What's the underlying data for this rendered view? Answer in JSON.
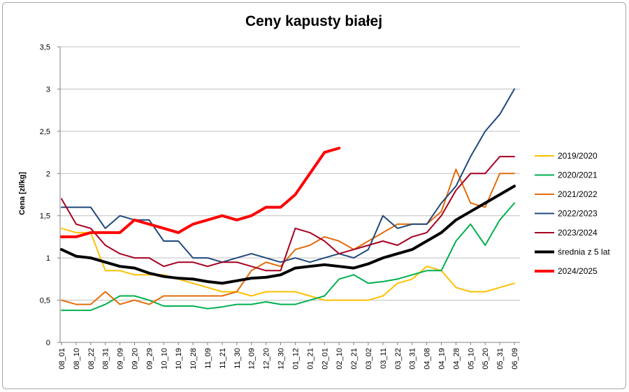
{
  "chart_data": {
    "type": "line",
    "title": "Ceny kapusty białej",
    "xlabel": "",
    "ylabel": "Cena [zł/kg]",
    "ylim": [
      0,
      3.5
    ],
    "y_ticks": [
      "0",
      "0,5",
      "1",
      "1,5",
      "2",
      "2,5",
      "3",
      "3,5"
    ],
    "grid": "horizontal",
    "legend_position": "right",
    "categories": [
      "08_01",
      "08_10",
      "08_22",
      "08_31",
      "09_09",
      "09_20",
      "09_29",
      "10_10",
      "10_19",
      "10_28",
      "11_09",
      "11_21",
      "11_30",
      "12_09",
      "12_20",
      "12_30",
      "01_12",
      "01_21",
      "02_01",
      "02_10",
      "02_21",
      "03_02",
      "03_11",
      "03_22",
      "03_31",
      "04_08",
      "04_19",
      "04_28",
      "05_10",
      "05_20",
      "05_31",
      "06_09"
    ],
    "series": [
      {
        "name": "2019/2020",
        "color": "#ffc000",
        "width": 2,
        "values": [
          1.35,
          1.3,
          1.3,
          0.85,
          0.85,
          0.8,
          0.8,
          0.8,
          0.75,
          0.7,
          0.65,
          0.6,
          0.6,
          0.55,
          0.6,
          0.6,
          0.6,
          0.55,
          0.5,
          0.5,
          0.5,
          0.5,
          0.55,
          0.7,
          0.75,
          0.9,
          0.85,
          0.65,
          0.6,
          0.6,
          0.65,
          0.7
        ]
      },
      {
        "name": "2020/2021",
        "color": "#00b050",
        "width": 2,
        "values": [
          0.38,
          0.38,
          0.38,
          0.45,
          0.55,
          0.55,
          0.5,
          0.43,
          0.43,
          0.43,
          0.4,
          0.42,
          0.45,
          0.45,
          0.48,
          0.45,
          0.45,
          0.5,
          0.55,
          0.75,
          0.8,
          0.7,
          0.72,
          0.75,
          0.8,
          0.85,
          0.85,
          1.2,
          1.4,
          1.15,
          1.45,
          1.65
        ]
      },
      {
        "name": "2021/2022",
        "color": "#e46c0a",
        "width": 2,
        "values": [
          0.5,
          0.45,
          0.45,
          0.6,
          0.45,
          0.5,
          0.45,
          0.55,
          0.55,
          0.55,
          0.55,
          0.55,
          0.6,
          0.85,
          0.95,
          0.9,
          1.1,
          1.15,
          1.25,
          1.2,
          1.1,
          1.2,
          1.3,
          1.4,
          1.4,
          1.4,
          1.55,
          2.05,
          1.65,
          1.6,
          2.0,
          2.0
        ]
      },
      {
        "name": "2022/2023",
        "color": "#1f497d",
        "width": 2,
        "values": [
          1.6,
          1.6,
          1.6,
          1.35,
          1.5,
          1.45,
          1.45,
          1.2,
          1.2,
          1.0,
          1.0,
          0.95,
          1.0,
          1.05,
          1.0,
          0.95,
          1.0,
          0.95,
          1.0,
          1.05,
          1.0,
          1.1,
          1.5,
          1.35,
          1.4,
          1.4,
          1.65,
          1.85,
          2.2,
          2.5,
          2.7,
          3.0
        ]
      },
      {
        "name": "2023/2024",
        "color": "#a50021",
        "width": 2,
        "values": [
          1.7,
          1.4,
          1.35,
          1.15,
          1.05,
          1.0,
          1.0,
          0.9,
          0.95,
          0.95,
          0.9,
          0.95,
          0.95,
          0.9,
          0.85,
          0.85,
          1.35,
          1.3,
          1.2,
          1.05,
          1.1,
          1.15,
          1.2,
          1.15,
          1.25,
          1.3,
          1.5,
          1.8,
          2.0,
          2.0,
          2.2,
          2.2
        ]
      },
      {
        "name": "średnia z 5 lat",
        "color": "#000000",
        "width": 4,
        "values": [
          1.1,
          1.02,
          1.0,
          0.95,
          0.9,
          0.88,
          0.82,
          0.78,
          0.76,
          0.75,
          0.72,
          0.7,
          0.73,
          0.76,
          0.77,
          0.8,
          0.88,
          0.9,
          0.92,
          0.9,
          0.88,
          0.93,
          1.0,
          1.05,
          1.1,
          1.2,
          1.3,
          1.45,
          1.55,
          1.65,
          1.75,
          1.85
        ]
      },
      {
        "name": "2024/2025",
        "color": "#ff0000",
        "width": 4,
        "values": [
          1.25,
          1.25,
          1.3,
          1.3,
          1.3,
          1.45,
          1.4,
          1.35,
          1.3,
          1.4,
          1.45,
          1.5,
          1.45,
          1.5,
          1.6,
          1.6,
          1.75,
          2.0,
          2.25,
          2.3,
          null,
          null,
          null,
          null,
          null,
          null,
          null,
          null,
          null,
          null,
          null,
          null
        ]
      }
    ]
  }
}
